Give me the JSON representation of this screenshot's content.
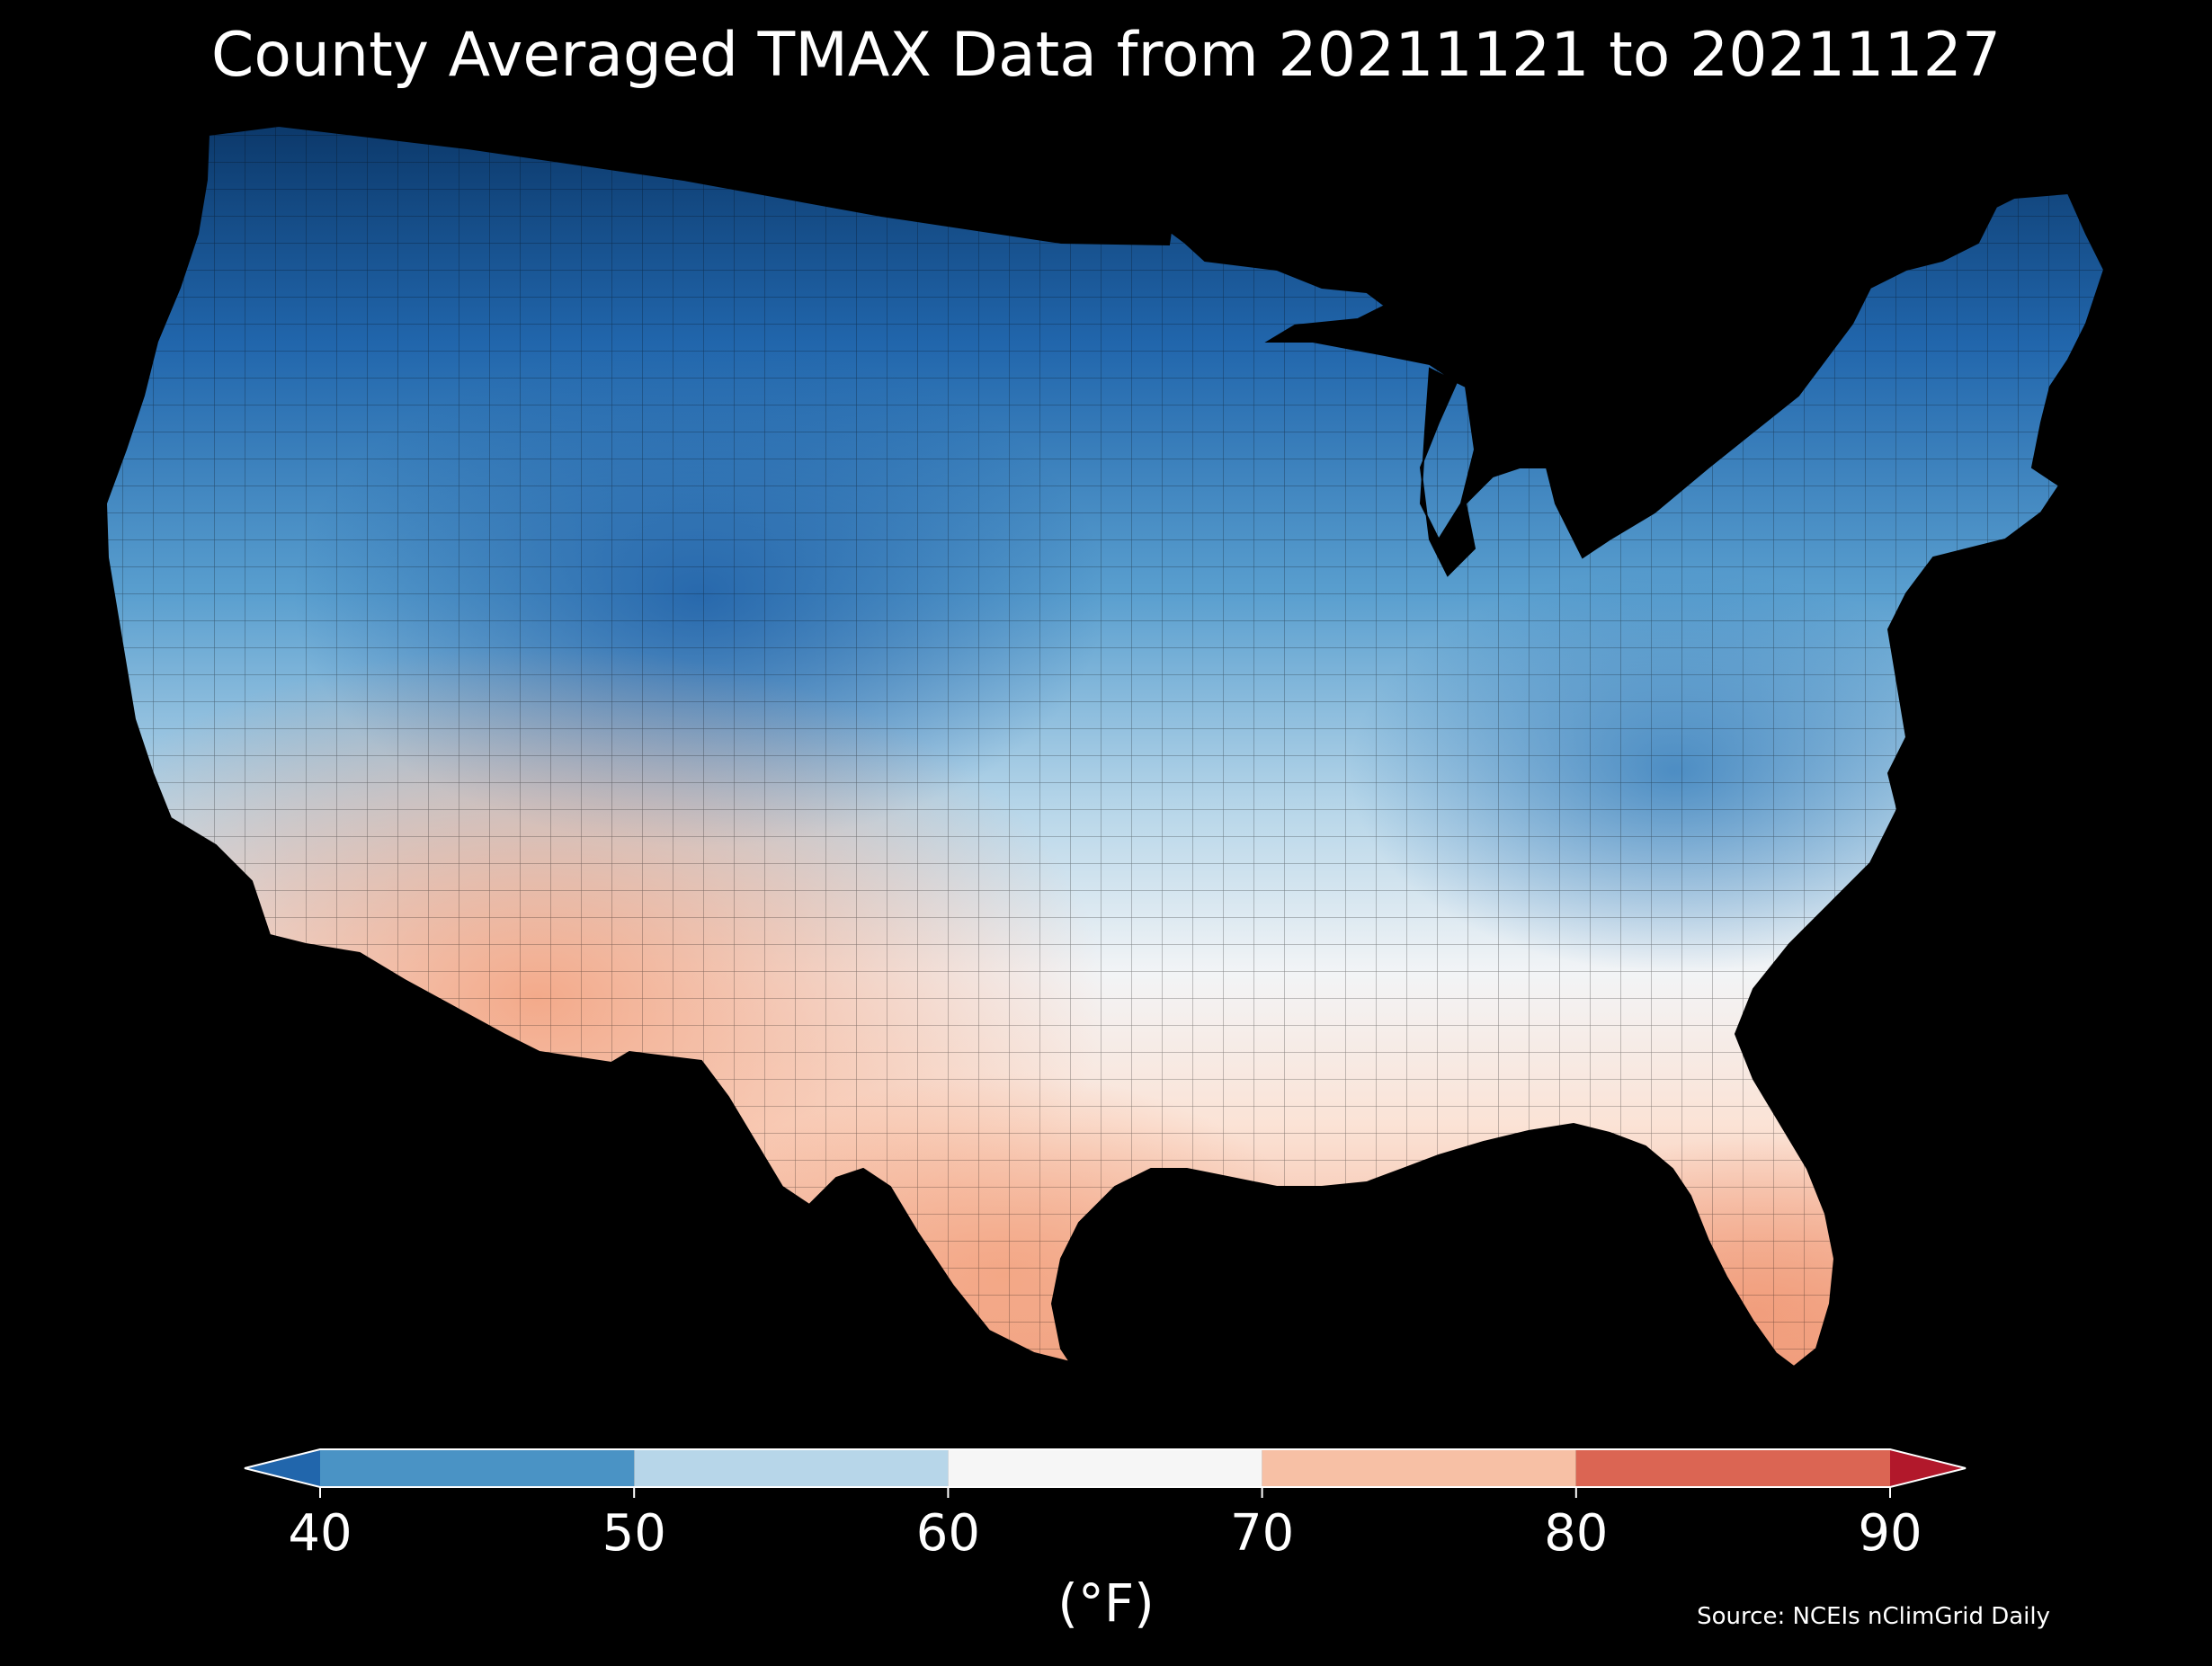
{
  "map": {
    "title": "County Averaged TMAX Data from 20211121 to 20211127",
    "region": "contiguous-united-states",
    "background_color": "#000000",
    "county_borders_color": "#000000",
    "source": "Source: NCEIs nClimGrid Daily"
  },
  "colorbar": {
    "unit_label": "(°F)",
    "min": 40,
    "max": 90,
    "extend": "both",
    "ticks": [
      "40",
      "50",
      "60",
      "70",
      "80",
      "90"
    ],
    "bins": [
      {
        "from": 40,
        "to": 50,
        "color": "#4a93c5"
      },
      {
        "from": 50,
        "to": 60,
        "color": "#b7d6e9"
      },
      {
        "from": 60,
        "to": 70,
        "color": "#f6f6f6"
      },
      {
        "from": 70,
        "to": 80,
        "color": "#f7c0a5"
      },
      {
        "from": 80,
        "to": 90,
        "color": "#db6553"
      }
    ],
    "under_color": "#2166ac",
    "over_color": "#b2182b"
  }
}
